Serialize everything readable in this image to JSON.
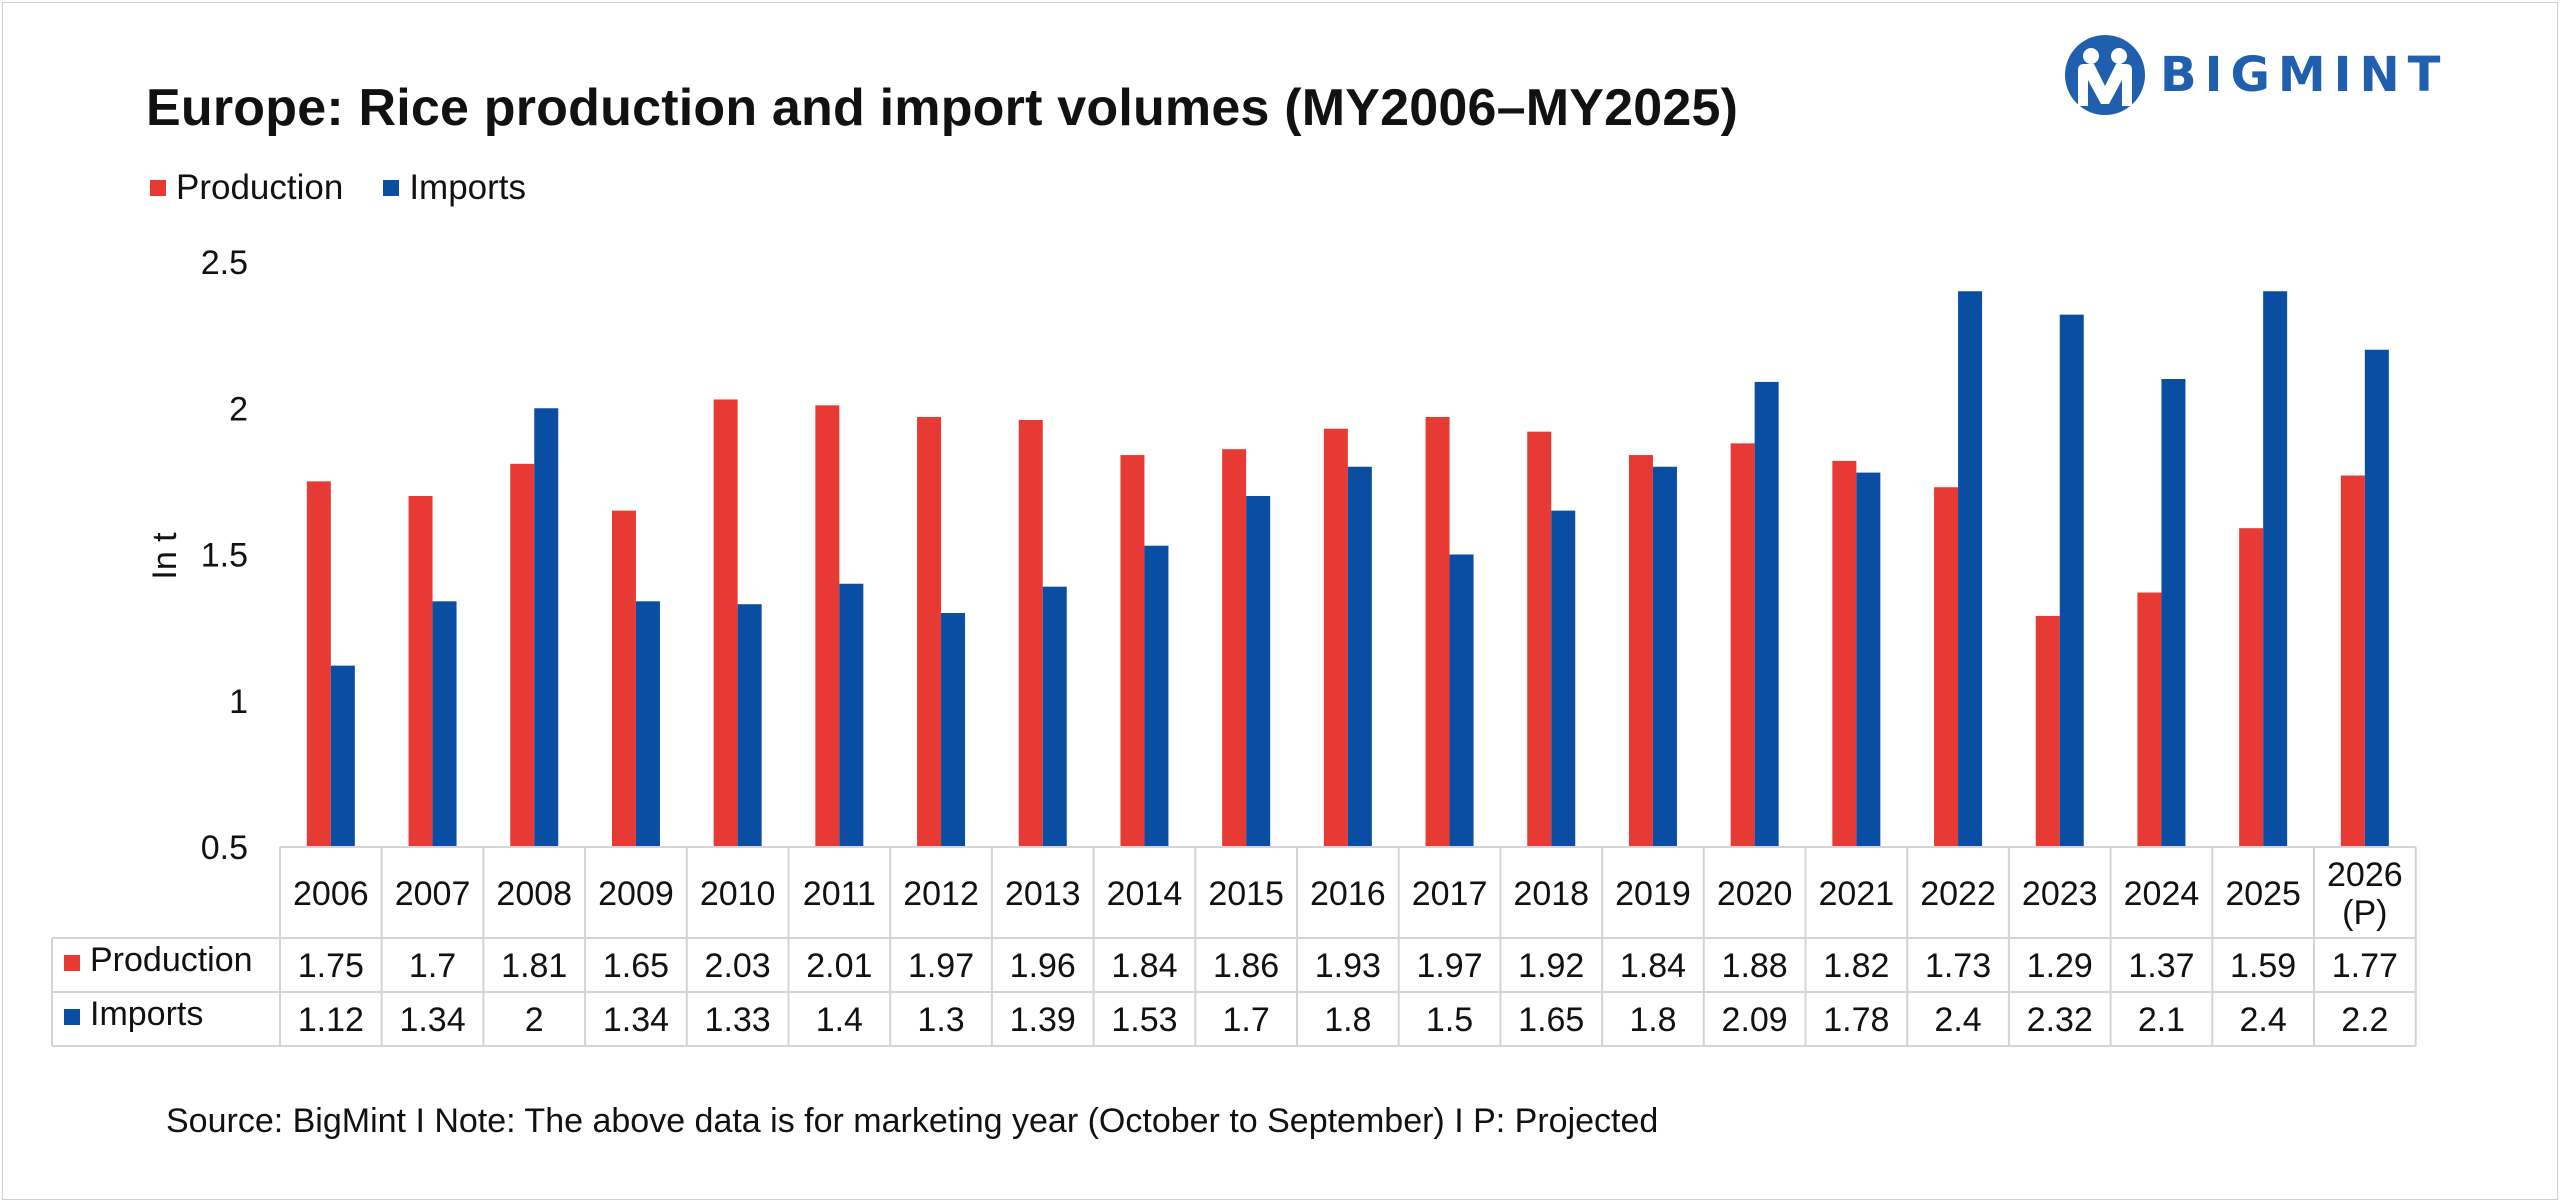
{
  "brand": {
    "name": "BIGMINT",
    "logo_icon": "bigmint-logo-icon",
    "color": "#1f5fad"
  },
  "chart_data": {
    "type": "bar",
    "title": "Europe: Rice production and import volumes (MY2006–MY2025)",
    "ylabel": "In t",
    "xlabel": "",
    "ylim": [
      0.5,
      2.5
    ],
    "yticks": [
      "0.5",
      "1",
      "1.5",
      "2",
      "2.5"
    ],
    "ytick_values": [
      0.5,
      1,
      1.5,
      2,
      2.5
    ],
    "grid": false,
    "legend_position": "top-left",
    "categories": [
      "2006",
      "2007",
      "2008",
      "2009",
      "2010",
      "2011",
      "2012",
      "2013",
      "2014",
      "2015",
      "2016",
      "2017",
      "2018",
      "2019",
      "2020",
      "2021",
      "2022",
      "2023",
      "2024",
      "2025",
      "2026 (P)"
    ],
    "category_lines": [
      [
        "2006"
      ],
      [
        "2007"
      ],
      [
        "2008"
      ],
      [
        "2009"
      ],
      [
        "2010"
      ],
      [
        "2011"
      ],
      [
        "2012"
      ],
      [
        "2013"
      ],
      [
        "2014"
      ],
      [
        "2015"
      ],
      [
        "2016"
      ],
      [
        "2017"
      ],
      [
        "2018"
      ],
      [
        "2019"
      ],
      [
        "2020"
      ],
      [
        "2021"
      ],
      [
        "2022"
      ],
      [
        "2023"
      ],
      [
        "2024"
      ],
      [
        "2025"
      ],
      [
        "2026",
        "(P)"
      ]
    ],
    "series": [
      {
        "name": "Production",
        "color": "#e83a35",
        "values": [
          1.75,
          1.7,
          1.81,
          1.65,
          2.03,
          2.01,
          1.97,
          1.96,
          1.84,
          1.86,
          1.93,
          1.97,
          1.92,
          1.84,
          1.88,
          1.82,
          1.73,
          1.29,
          1.37,
          1.59,
          1.77
        ],
        "labels": [
          "1.75",
          "1.7",
          "1.81",
          "1.65",
          "2.03",
          "2.01",
          "1.97",
          "1.96",
          "1.84",
          "1.86",
          "1.93",
          "1.97",
          "1.92",
          "1.84",
          "1.88",
          "1.82",
          "1.73",
          "1.29",
          "1.37",
          "1.59",
          "1.77"
        ]
      },
      {
        "name": "Imports",
        "color": "#0a4ea3",
        "values": [
          1.12,
          1.34,
          2,
          1.34,
          1.33,
          1.4,
          1.3,
          1.39,
          1.53,
          1.7,
          1.8,
          1.5,
          1.65,
          1.8,
          2.09,
          1.78,
          2.4,
          2.32,
          2.1,
          2.4,
          2.2
        ],
        "labels": [
          "1.12",
          "1.34",
          "2",
          "1.34",
          "1.33",
          "1.4",
          "1.3",
          "1.39",
          "1.53",
          "1.7",
          "1.8",
          "1.5",
          "1.65",
          "1.8",
          "2.09",
          "1.78",
          "2.4",
          "2.32",
          "2.1",
          "2.4",
          "2.2"
        ]
      }
    ]
  },
  "footnote": "Source: BigMint I Note: The above data is for marketing year (October to September) I P: Projected"
}
